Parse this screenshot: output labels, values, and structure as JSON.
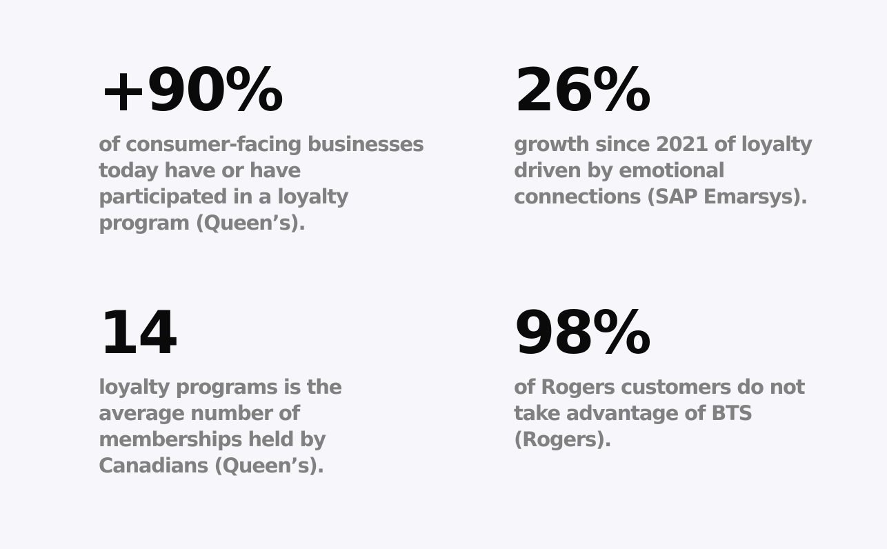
{
  "stats": [
    {
      "value": "+90%",
      "description": "of consumer-facing businesses today have or have participated in a loyalty program (Queen’s)."
    },
    {
      "value": "26%",
      "description": "growth since 2021 of loyalty driven by emotional connections (SAP Emarsys)."
    },
    {
      "value": "14",
      "description": "loyalty programs is the average number of memberships held by Canadians (Queen’s)."
    },
    {
      "value": "98%",
      "description": "of Rogers customers do not take advantage of BTS (Rogers)."
    }
  ],
  "colors": {
    "background": "#f7f7fb",
    "value_text": "#0a0a0a",
    "description_text": "#808080"
  }
}
